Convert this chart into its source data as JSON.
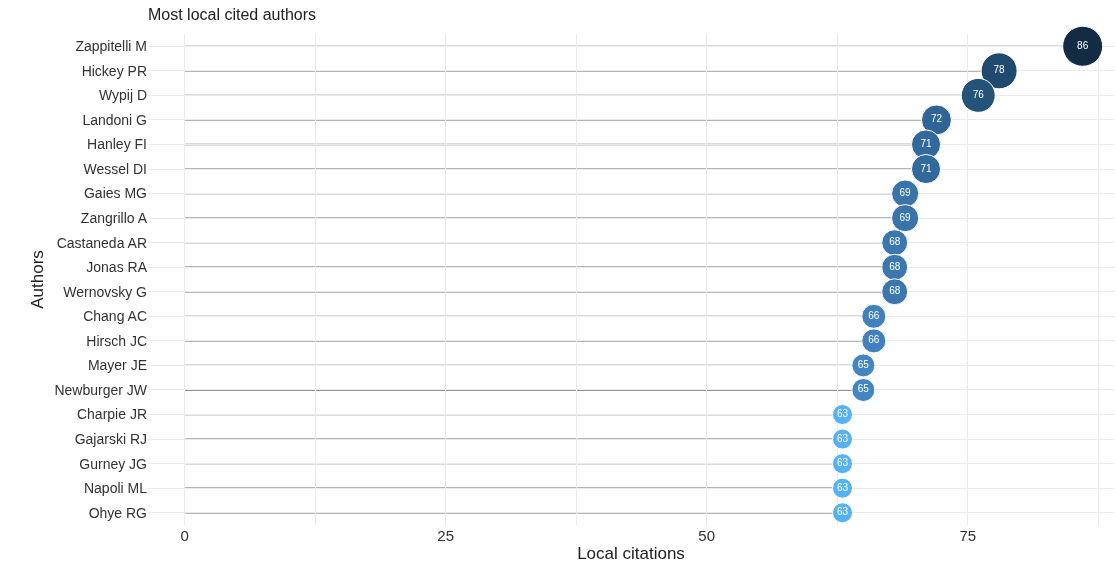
{
  "chart_data": {
    "type": "lollipop",
    "orientation": "horizontal",
    "title": "Most local cited authors",
    "xlabel": "Local citations",
    "ylabel": "Authors",
    "categories": [
      "Zappitelli M",
      "Hickey PR",
      "Wypij D",
      "Landoni G",
      "Hanley FI",
      "Wessel DI",
      "Gaies MG",
      "Zangrillo A",
      "Castaneda AR",
      "Jonas RA",
      "Wernovsky G",
      "Chang AC",
      "Hirsch JC",
      "Mayer JE",
      "Newburger JW",
      "Charpie JR",
      "Gajarski RJ",
      "Gurney JG",
      "Napoli ML",
      "Ohye RG"
    ],
    "values": [
      86,
      78,
      76,
      72,
      71,
      71,
      69,
      69,
      68,
      68,
      68,
      66,
      66,
      65,
      65,
      63,
      63,
      63,
      63,
      63
    ],
    "colors": [
      "#132b43",
      "#1f4a6d",
      "#24537a",
      "#2f6596",
      "#32699c",
      "#32699c",
      "#3873aa",
      "#3873aa",
      "#3a77b0",
      "#3a77b0",
      "#3a77b0",
      "#3f80bd",
      "#3f80bd",
      "#4285c3",
      "#4285c3",
      "#56b1f7",
      "#56b1f7",
      "#56b1f7",
      "#56b1f7",
      "#56b1f7"
    ],
    "sizes": [
      1,
      0.81,
      0.72,
      0.56,
      0.53,
      0.53,
      0.46,
      0.46,
      0.42,
      0.42,
      0.42,
      0.36,
      0.36,
      0.33,
      0.33,
      0.25,
      0.25,
      0.25,
      0.25,
      0.25
    ],
    "data_labels": true,
    "xlim": [
      -3.5,
      89
    ],
    "xticks": [
      0,
      {
        "value": 12.5,
        "label": null
      },
      25,
      {
        "value": 37.5,
        "label": null
      },
      50,
      {
        "value": 62.5,
        "label": null
      },
      75,
      {
        "value": 87.5,
        "label": null
      }
    ],
    "grid": true
  }
}
